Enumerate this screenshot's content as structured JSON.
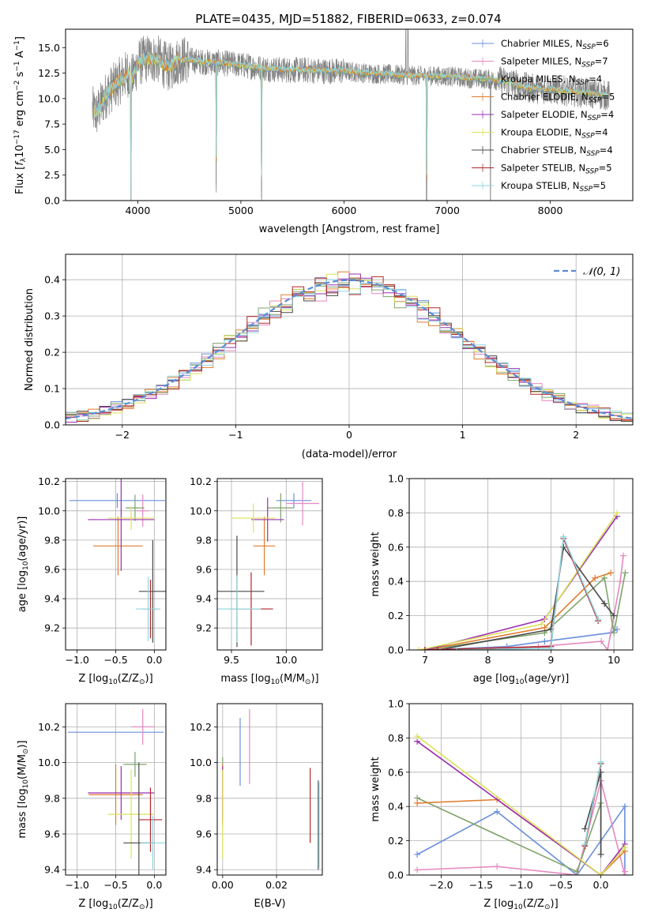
{
  "figure": {
    "title": "PLATE=0435, MJD=51882, FIBERID=0633, z=0.074"
  },
  "colors": {
    "Chabrier MILES": "#6a8fdc",
    "Salpeter MILES": "#e58ac0",
    "Kroupa MILES": "#7fa36a",
    "Chabrier ELODIE": "#e07c2c",
    "Salpeter ELODIE": "#9a2fb3",
    "Kroupa ELODIE": "#dbe35a",
    "Chabrier STELIB": "#4a4a4a",
    "Salpeter STELIB": "#b3262a",
    "Kroupa STELIB": "#8fd6df",
    "data": "#808080",
    "normal": "#5b8bd6"
  },
  "chart_data": [
    {
      "id": "spectrum",
      "type": "line",
      "title": "PLATE=0435, MJD=51882, FIBERID=0633, z=0.074",
      "xlabel": "wavelength [Angstrom, rest frame]",
      "ylabel_parts": [
        "Flux [",
        "f",
        "λ",
        "10",
        "−17",
        " erg cm",
        "−2",
        " s",
        "−1",
        " A",
        "−1",
        "]"
      ],
      "xlim": [
        3300,
        8800
      ],
      "ylim": [
        0,
        16.8
      ],
      "xticks": [
        4000,
        5000,
        6000,
        7000,
        8000
      ],
      "yticks": [
        0.0,
        2.5,
        5.0,
        7.5,
        10.0,
        12.5,
        15.0
      ],
      "grid": false,
      "legend_position": "upper-right",
      "legend": [
        {
          "name": "Chabrier MILES",
          "nssp": "6"
        },
        {
          "name": "Salpeter MILES",
          "nssp": "7"
        },
        {
          "name": "Kroupa MILES",
          "nssp": "4"
        },
        {
          "name": "Chabrier ELODIE",
          "nssp": "5"
        },
        {
          "name": "Salpeter ELODIE",
          "nssp": "4"
        },
        {
          "name": "Kroupa ELODIE",
          "nssp": "4"
        },
        {
          "name": "Chabrier STELIB",
          "nssp": "4"
        },
        {
          "name": "Salpeter STELIB",
          "nssp": "5"
        },
        {
          "name": "Kroupa STELIB",
          "nssp": "5"
        }
      ],
      "continuum": {
        "x": [
          3550,
          3600,
          3700,
          3800,
          3900,
          3950,
          4000,
          4100,
          4200,
          4300,
          4400,
          4500,
          4600,
          4800,
          5000,
          5200,
          5400,
          5600,
          5800,
          6000,
          6200,
          6400,
          6600,
          6800,
          7000,
          7200,
          7400,
          7600,
          7800,
          8000,
          8200,
          8400,
          8550
        ],
        "y": [
          9.0,
          8.5,
          10.5,
          11.5,
          12.5,
          12.0,
          13.5,
          14.0,
          13.8,
          13.0,
          13.8,
          13.8,
          13.6,
          13.5,
          13.3,
          13.0,
          12.8,
          12.8,
          12.7,
          12.7,
          12.5,
          12.4,
          12.3,
          12.2,
          12.2,
          12.0,
          11.9,
          11.6,
          11.0,
          10.9,
          10.7,
          10.5,
          10.3
        ]
      },
      "dips": [
        {
          "x": 3933,
          "depth": 16.0
        },
        {
          "x": 4760,
          "depth": 12.0
        },
        {
          "x": 5200,
          "depth": 13.5
        },
        {
          "x": 6800,
          "depth": 12.5
        },
        {
          "x": 7420,
          "depth": 12.0
        }
      ],
      "spikes": [
        {
          "x": 6600,
          "height": 16.8
        },
        {
          "x": 6620,
          "height": 16.8
        }
      ]
    },
    {
      "id": "residuals",
      "type": "histogram",
      "xlabel": "(data-model)/error",
      "ylabel": "Normed distribution",
      "xlim": [
        -2.5,
        2.5
      ],
      "ylim": [
        0,
        0.47
      ],
      "xticks": [
        -2,
        -1,
        0,
        1,
        2
      ],
      "yticks": [
        0.0,
        0.1,
        0.2,
        0.3,
        0.4
      ],
      "grid": true,
      "legend_position": "upper-right",
      "legend_label": "𝒩(0, 1)",
      "bin_width": 0.1,
      "bin_start": -2.5
    },
    {
      "id": "age-vs-Z",
      "type": "errorbar",
      "xlabel_parts": [
        "Z [log",
        "10",
        "(Z/Z",
        "⊙",
        ")]"
      ],
      "ylabel_parts": [
        "age  [log",
        "10",
        "(age/yr)]"
      ],
      "xlim": [
        -1.15,
        0.15
      ],
      "ylim": [
        9.05,
        10.22
      ],
      "xticks": [
        -1.0,
        -0.5,
        0.0
      ],
      "yticks": [
        9.2,
        9.4,
        9.6,
        9.8,
        10.0,
        10.2
      ],
      "grid": true,
      "points": [
        {
          "model": "Chabrier MILES",
          "x": -0.48,
          "xerr": 0.62,
          "y": 10.07,
          "yerr": 0.05
        },
        {
          "model": "Salpeter MILES",
          "x": -0.15,
          "xerr": 0.08,
          "y": 10.0,
          "yerr": 0.11
        },
        {
          "model": "Kroupa MILES",
          "x": -0.25,
          "xerr": 0.12,
          "y": 10.02,
          "yerr": 0.09
        },
        {
          "model": "Chabrier ELODIE",
          "x": -0.47,
          "xerr": 0.32,
          "y": 9.76,
          "yerr": 0.2
        },
        {
          "model": "Salpeter ELODIE",
          "x": -0.43,
          "xerr": 0.43,
          "y": 9.94,
          "yerr": 0.35
        },
        {
          "model": "Kroupa ELODIE",
          "x": -0.3,
          "xerr": 0.3,
          "y": 9.95,
          "yerr": 0.08
        },
        {
          "model": "Chabrier STELIB",
          "x": -0.02,
          "xerr": 0.18,
          "y": 9.45,
          "yerr": 0.35
        },
        {
          "model": "Salpeter STELIB",
          "x": -0.05,
          "xerr": 0.1,
          "y": 9.33,
          "yerr": 0.2
        },
        {
          "model": "Kroupa STELIB",
          "x": -0.08,
          "xerr": 0.16,
          "y": 9.33,
          "yerr": 0.22
        }
      ]
    },
    {
      "id": "age-vs-mass",
      "type": "errorbar",
      "xlabel_parts": [
        "mass [log",
        "10",
        "(M/M",
        "⊙",
        ")]"
      ],
      "xlim": [
        9.37,
        10.33
      ],
      "ylim": [
        9.05,
        10.22
      ],
      "xticks": [
        9.5,
        10.0
      ],
      "yticks": [
        9.2,
        9.4,
        9.6,
        9.8,
        10.0,
        10.2
      ],
      "grid": true,
      "points": [
        {
          "model": "Chabrier MILES",
          "x": 10.07,
          "xerr": 0.16,
          "y": 10.07,
          "yerr": 0.05
        },
        {
          "model": "Salpeter MILES",
          "x": 10.15,
          "xerr": 0.15,
          "y": 10.05,
          "yerr": 0.15
        },
        {
          "model": "Kroupa MILES",
          "x": 9.95,
          "xerr": 0.12,
          "y": 10.02,
          "yerr": 0.1
        },
        {
          "model": "Chabrier ELODIE",
          "x": 9.8,
          "xerr": 0.1,
          "y": 9.76,
          "yerr": 0.2
        },
        {
          "model": "Salpeter ELODIE",
          "x": 9.83,
          "xerr": 0.15,
          "y": 9.94,
          "yerr": 0.15
        },
        {
          "model": "Kroupa ELODIE",
          "x": 9.7,
          "xerr": 0.2,
          "y": 9.95,
          "yerr": 0.1
        },
        {
          "model": "Chabrier STELIB",
          "x": 9.55,
          "xerr": 0.25,
          "y": 9.45,
          "yerr": 0.38
        },
        {
          "model": "Salpeter STELIB",
          "x": 9.68,
          "xerr": 0.2,
          "y": 9.33,
          "yerr": 0.25
        },
        {
          "model": "Kroupa STELIB",
          "x": 9.55,
          "xerr": 0.22,
          "y": 9.33,
          "yerr": 0.23
        }
      ]
    },
    {
      "id": "weight-vs-age",
      "type": "line",
      "ylabel": "mass weight",
      "xlabel_parts": [
        "age  [log",
        "10",
        "(age/yr)]"
      ],
      "xlim": [
        6.75,
        10.3
      ],
      "ylim": [
        0,
        1.0
      ],
      "xticks": [
        7,
        8,
        9,
        10
      ],
      "yticks": [
        0.0,
        0.2,
        0.4,
        0.6,
        0.8,
        1.0
      ],
      "grid": true,
      "series": [
        {
          "model": "Chabrier MILES",
          "x": [
            7.0,
            8.3,
            8.9,
            9.95,
            10.05
          ],
          "y": [
            0.0,
            0.02,
            0.05,
            0.1,
            0.12
          ]
        },
        {
          "model": "Salpeter MILES",
          "x": [
            7.0,
            8.8,
            9.8,
            9.9,
            10.1,
            10.15
          ],
          "y": [
            0.0,
            0.02,
            0.05,
            0.0,
            0.4,
            0.55
          ]
        },
        {
          "model": "Kroupa MILES",
          "x": [
            7.0,
            8.9,
            9.85,
            10.0,
            10.18
          ],
          "y": [
            0.0,
            0.1,
            0.42,
            0.1,
            0.45
          ]
        },
        {
          "model": "Chabrier ELODIE",
          "x": [
            7.0,
            8.9,
            9.7,
            9.95
          ],
          "y": [
            0.0,
            0.13,
            0.42,
            0.45
          ]
        },
        {
          "model": "Salpeter ELODIE",
          "x": [
            7.0,
            8.9,
            10.05
          ],
          "y": [
            0.0,
            0.18,
            0.78
          ]
        },
        {
          "model": "Kroupa ELODIE",
          "x": [
            6.9,
            8.85,
            10.05
          ],
          "y": [
            0.0,
            0.15,
            0.8
          ]
        },
        {
          "model": "Chabrier STELIB",
          "x": [
            7.2,
            9.0,
            9.2,
            9.85,
            10.0
          ],
          "y": [
            0.0,
            0.12,
            0.6,
            0.27,
            0.2
          ]
        },
        {
          "model": "Salpeter STELIB",
          "x": [
            7.0,
            9.0,
            9.2,
            9.75
          ],
          "y": [
            0.0,
            0.02,
            0.65,
            0.17
          ]
        },
        {
          "model": "Kroupa STELIB",
          "x": [
            7.5,
            9.0,
            9.2,
            9.75
          ],
          "y": [
            0.0,
            0.01,
            0.66,
            0.18
          ]
        }
      ]
    },
    {
      "id": "mass-vs-Z",
      "type": "errorbar",
      "xlabel_parts": [
        "Z [log",
        "10",
        "(Z/Z",
        "⊙",
        ")]"
      ],
      "ylabel_parts": [
        "mass [log",
        "10",
        "(M/M",
        "⊙",
        ")]"
      ],
      "xlim": [
        -1.15,
        0.15
      ],
      "ylim": [
        9.37,
        10.33
      ],
      "xticks": [
        -1.0,
        -0.5,
        0.0
      ],
      "yticks": [
        9.4,
        9.6,
        9.8,
        10.0,
        10.2
      ],
      "grid": true,
      "points": [
        {
          "model": "Chabrier MILES",
          "x": -0.5,
          "xerr": 0.62,
          "y": 10.17,
          "yerr": 0.0
        },
        {
          "model": "Salpeter MILES",
          "x": -0.15,
          "xerr": 0.15,
          "y": 10.2,
          "yerr": 0.1
        },
        {
          "model": "Kroupa MILES",
          "x": -0.25,
          "xerr": 0.15,
          "y": 9.99,
          "yerr": 0.07
        },
        {
          "model": "Chabrier ELODIE",
          "x": -0.5,
          "xerr": 0.35,
          "y": 9.82,
          "yerr": 0.17
        },
        {
          "model": "Salpeter ELODIE",
          "x": -0.43,
          "xerr": 0.43,
          "y": 9.83,
          "yerr": 0.15
        },
        {
          "model": "Kroupa ELODIE",
          "x": -0.3,
          "xerr": 0.3,
          "y": 9.71,
          "yerr": 0.25
        },
        {
          "model": "Chabrier STELIB",
          "x": -0.2,
          "xerr": 0.2,
          "y": 9.55,
          "yerr": 0.45
        },
        {
          "model": "Salpeter STELIB",
          "x": -0.05,
          "xerr": 0.15,
          "y": 9.68,
          "yerr": 0.18
        },
        {
          "model": "Kroupa STELIB",
          "x": -0.02,
          "xerr": 0.16,
          "y": 9.55,
          "yerr": 0.15
        }
      ]
    },
    {
      "id": "mass-vs-ebv",
      "type": "errorbar",
      "xlabel": "E(B-V)",
      "xlim": [
        -0.002,
        0.037
      ],
      "ylim": [
        9.37,
        10.33
      ],
      "xticks": [
        0.0,
        0.02
      ],
      "yticks": [
        9.4,
        9.6,
        9.8,
        10.0,
        10.2
      ],
      "grid": true,
      "points": [
        {
          "model": "Chabrier MILES",
          "x": 0.0065,
          "xerr": 0,
          "y": 10.06,
          "yerr": 0.19
        },
        {
          "model": "Salpeter MILES",
          "x": 0.01,
          "xerr": 0,
          "y": 10.09,
          "yerr": 0.21
        },
        {
          "model": "Kroupa MILES",
          "x": 0.0,
          "xerr": 0,
          "y": 9.95,
          "yerr": 0.08
        },
        {
          "model": "Chabrier ELODIE",
          "x": 0.0,
          "xerr": 0,
          "y": 9.82,
          "yerr": 0.17
        },
        {
          "model": "Salpeter ELODIE",
          "x": 0.0,
          "xerr": 0,
          "y": 9.83,
          "yerr": 0.15
        },
        {
          "model": "Kroupa ELODIE",
          "x": 0.0,
          "xerr": 0,
          "y": 9.71,
          "yerr": 0.25
        },
        {
          "model": "Chabrier STELIB",
          "x": 0.0355,
          "xerr": 0,
          "y": 9.65,
          "yerr": 0.25
        },
        {
          "model": "Salpeter STELIB",
          "x": 0.0325,
          "xerr": 0,
          "y": 9.76,
          "yerr": 0.21
        },
        {
          "model": "Kroupa STELIB",
          "x": 0.0358,
          "xerr": 0,
          "y": 9.65,
          "yerr": 0.24
        }
      ]
    },
    {
      "id": "weight-vs-Z",
      "type": "line",
      "ylabel": "mass weight",
      "xlabel_parts": [
        "Z [log",
        "10",
        "(Z/Z",
        "⊙",
        ")]"
      ],
      "xlim": [
        -2.4,
        0.4
      ],
      "ylim": [
        0,
        1.0
      ],
      "xticks": [
        -2.0,
        -1.5,
        -1.0,
        -0.5,
        0.0
      ],
      "yticks": [
        0.0,
        0.2,
        0.4,
        0.6,
        0.8,
        1.0
      ],
      "grid": true,
      "series": [
        {
          "model": "Chabrier MILES",
          "x": [
            -2.3,
            -1.3,
            -0.3,
            0.3,
            0.3
          ],
          "y": [
            0.12,
            0.37,
            0.0,
            0.4,
            0.0
          ]
        },
        {
          "model": "Salpeter MILES",
          "x": [
            -2.3,
            -1.3,
            -0.3,
            0.0,
            0.3,
            0.3
          ],
          "y": [
            0.03,
            0.05,
            0.0,
            0.55,
            0.0,
            0.02
          ]
        },
        {
          "model": "Kroupa MILES",
          "x": [
            -2.3,
            -0.3,
            0.0,
            0.0
          ],
          "y": [
            0.45,
            0.02,
            0.42,
            0.12
          ]
        },
        {
          "model": "Chabrier ELODIE",
          "x": [
            -2.3,
            -1.3,
            0.0,
            0.3
          ],
          "y": [
            0.42,
            0.44,
            0.0,
            0.14
          ]
        },
        {
          "model": "Salpeter ELODIE",
          "x": [
            -2.3,
            0.0,
            0.3
          ],
          "y": [
            0.78,
            0.0,
            0.18
          ]
        },
        {
          "model": "Kroupa ELODIE",
          "x": [
            -2.3,
            0.0,
            0.3
          ],
          "y": [
            0.81,
            0.0,
            0.16
          ]
        },
        {
          "model": "Chabrier STELIB",
          "x": [
            -0.2,
            0.0,
            0.0
          ],
          "y": [
            0.27,
            0.6,
            0.12
          ]
        },
        {
          "model": "Salpeter STELIB",
          "x": [
            -0.2,
            0.0
          ],
          "y": [
            0.17,
            0.65
          ]
        },
        {
          "model": "Kroupa STELIB",
          "x": [
            -0.2,
            0.0
          ],
          "y": [
            0.18,
            0.66
          ]
        }
      ]
    }
  ]
}
